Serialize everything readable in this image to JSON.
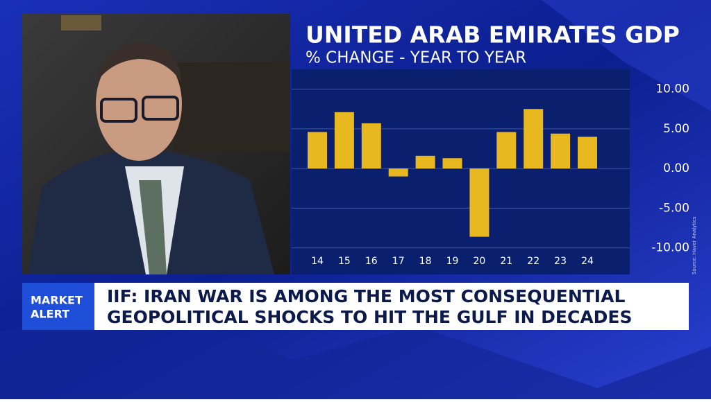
{
  "chart_data": {
    "type": "bar",
    "title": "UNITED ARAB EMIRATES GDP",
    "subtitle": "% CHANGE - YEAR TO YEAR",
    "categories": [
      "14",
      "15",
      "16",
      "17",
      "18",
      "19",
      "20",
      "21",
      "22",
      "23",
      "24"
    ],
    "values": [
      4.6,
      7.1,
      5.7,
      -1.0,
      1.6,
      1.3,
      -8.6,
      4.6,
      7.5,
      4.4,
      4.0
    ],
    "color": "#e8b820",
    "ylim": [
      -13,
      12.5
    ],
    "yticks": [
      {
        "value": 10,
        "label": "10.00"
      },
      {
        "value": 5,
        "label": "5.00"
      },
      {
        "value": 0,
        "label": "0.00"
      },
      {
        "value": -5,
        "label": "-5.00"
      },
      {
        "value": -10,
        "label": "-10.00"
      }
    ],
    "grid": true,
    "source": "Source: Haver Analytics"
  },
  "banner": {
    "label": [
      "MARKET",
      "ALERT"
    ],
    "headline": [
      "IIF: IRAN WAR IS AMONG THE MOST CONSEQUENTIAL",
      "GEOPOLITICAL SHOCKS TO HIT THE GULF IN DECADES"
    ]
  }
}
